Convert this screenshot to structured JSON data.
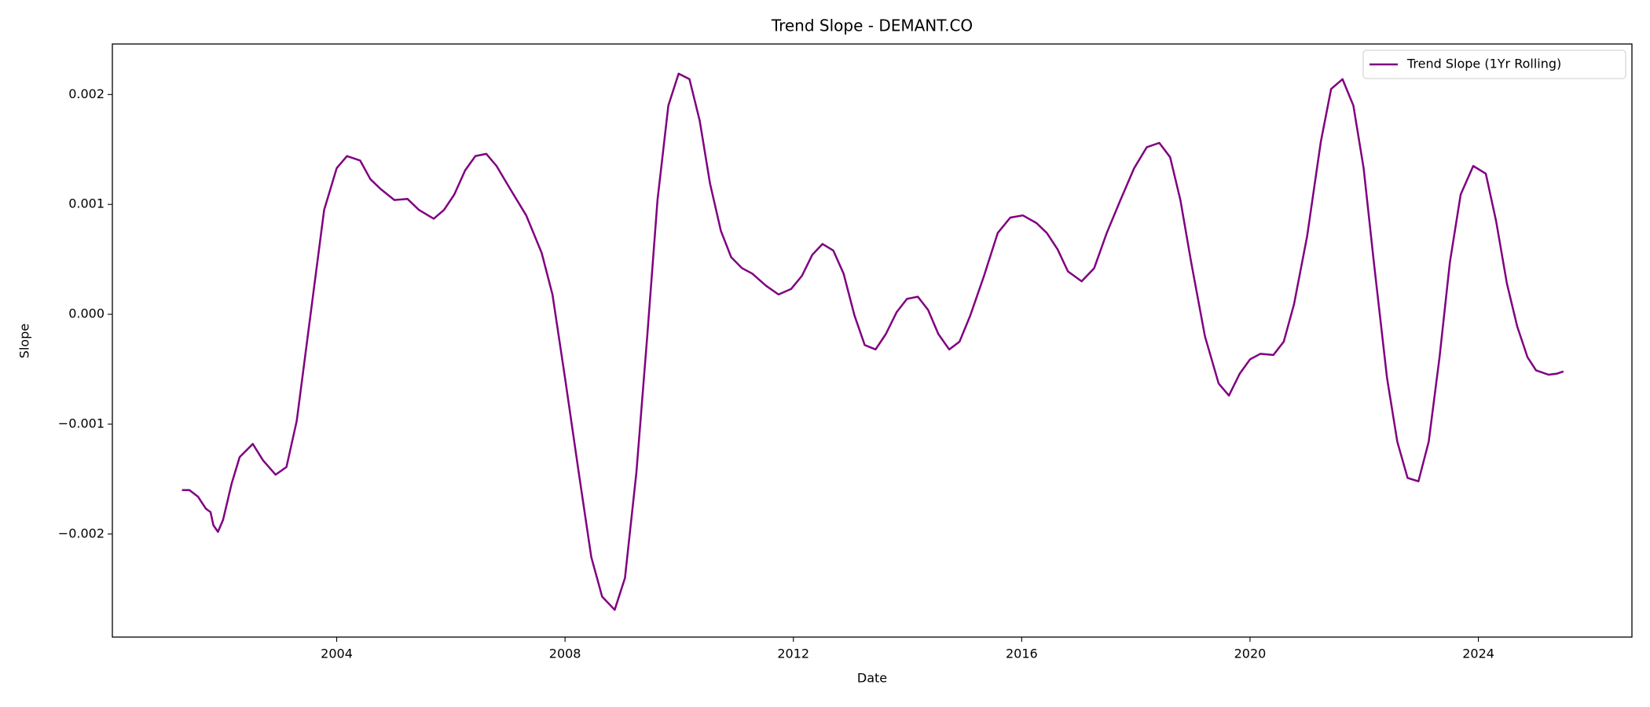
{
  "chart_data": {
    "type": "line",
    "title": "Trend Slope - DEMANT.CO",
    "xlabel": "Date",
    "ylabel": "Slope",
    "xlim": [
      2000.07,
      2026.69
    ],
    "xticks": [
      2004,
      2008,
      2012,
      2016,
      2020,
      2024
    ],
    "ylim": [
      -0.002938,
      0.00246
    ],
    "yticks": [
      {
        "value": -0.002,
        "label": "−0.002"
      },
      {
        "value": -0.001,
        "label": "−0.001"
      },
      {
        "value": 0,
        "label": "0.000"
      },
      0.001,
      0.002
    ],
    "grid": false,
    "legend": "upper right",
    "x": [
      2001.29,
      2001.42,
      2001.57,
      2001.71,
      2001.79,
      2001.84,
      2001.92,
      2002.01,
      2002.16,
      2002.3,
      2002.53,
      2002.71,
      2002.93,
      2003.12,
      2003.3,
      2003.54,
      2003.78,
      2004.0,
      2004.18,
      2004.41,
      2004.59,
      2004.77,
      2005.01,
      2005.24,
      2005.44,
      2005.7,
      2005.88,
      2006.06,
      2006.25,
      2006.43,
      2006.62,
      2006.8,
      2007.04,
      2007.32,
      2007.59,
      2007.78,
      2008.0,
      2008.24,
      2008.46,
      2008.65,
      2008.87,
      2009.05,
      2009.25,
      2009.44,
      2009.62,
      2009.81,
      2009.99,
      2010.18,
      2010.36,
      2010.54,
      2010.73,
      2010.91,
      2011.1,
      2011.28,
      2011.52,
      2011.74,
      2011.96,
      2012.15,
      2012.33,
      2012.51,
      2012.7,
      2012.88,
      2013.07,
      2013.25,
      2013.44,
      2013.62,
      2013.81,
      2013.99,
      2014.18,
      2014.36,
      2014.54,
      2014.73,
      2014.91,
      2015.1,
      2015.34,
      2015.58,
      2015.8,
      2016.02,
      2016.26,
      2016.44,
      2016.63,
      2016.81,
      2017.05,
      2017.27,
      2017.49,
      2017.73,
      2017.97,
      2018.19,
      2018.41,
      2018.6,
      2018.78,
      2018.97,
      2019.21,
      2019.45,
      2019.63,
      2019.82,
      2020.0,
      2020.18,
      2020.41,
      2020.59,
      2020.77,
      2021.0,
      2021.24,
      2021.42,
      2021.62,
      2021.81,
      2021.99,
      2022.17,
      2022.4,
      2022.58,
      2022.76,
      2022.95,
      2023.13,
      2023.32,
      2023.5,
      2023.69,
      2023.91,
      2024.13,
      2024.31,
      2024.5,
      2024.68,
      2024.86,
      2025.01,
      2025.23,
      2025.38,
      2025.49
    ],
    "series": [
      {
        "name": "Trend Slope (1Yr Rolling)",
        "color": "#800080",
        "values": [
          -0.0016,
          -0.0016,
          -0.00166,
          -0.00177,
          -0.0018,
          -0.00192,
          -0.00198,
          -0.00187,
          -0.00154,
          -0.0013,
          -0.00118,
          -0.00133,
          -0.00146,
          -0.00139,
          -0.00097,
          -1e-05,
          0.00095,
          0.00133,
          0.00144,
          0.0014,
          0.00123,
          0.00114,
          0.00104,
          0.00105,
          0.00095,
          0.00087,
          0.00095,
          0.00109,
          0.00131,
          0.00144,
          0.00146,
          0.00135,
          0.00114,
          0.0009,
          0.00056,
          0.00018,
          -0.00058,
          -0.00144,
          -0.00221,
          -0.00257,
          -0.00269,
          -0.0024,
          -0.00144,
          -0.0002,
          0.00104,
          0.0019,
          0.00219,
          0.00214,
          0.00176,
          0.00119,
          0.00076,
          0.00052,
          0.00042,
          0.00037,
          0.00026,
          0.00018,
          0.00023,
          0.00035,
          0.00054,
          0.00064,
          0.00058,
          0.00037,
          -1e-05,
          -0.00028,
          -0.00032,
          -0.00018,
          2e-05,
          0.00014,
          0.00016,
          4e-05,
          -0.00018,
          -0.00032,
          -0.00025,
          -1e-05,
          0.00035,
          0.00074,
          0.00088,
          0.0009,
          0.00083,
          0.00074,
          0.00059,
          0.00039,
          0.0003,
          0.00042,
          0.00074,
          0.00104,
          0.00133,
          0.00152,
          0.00156,
          0.00143,
          0.00104,
          0.00047,
          -0.0002,
          -0.00063,
          -0.00074,
          -0.00054,
          -0.00041,
          -0.00036,
          -0.00037,
          -0.00025,
          9e-05,
          0.00071,
          0.00157,
          0.00205,
          0.00214,
          0.0019,
          0.00133,
          0.00047,
          -0.00058,
          -0.00116,
          -0.00149,
          -0.00152,
          -0.00116,
          -0.00039,
          0.00047,
          0.00109,
          0.00135,
          0.00128,
          0.00085,
          0.00028,
          -0.00011,
          -0.00039,
          -0.00051,
          -0.00055,
          -0.00054,
          -0.00052
        ]
      }
    ]
  }
}
